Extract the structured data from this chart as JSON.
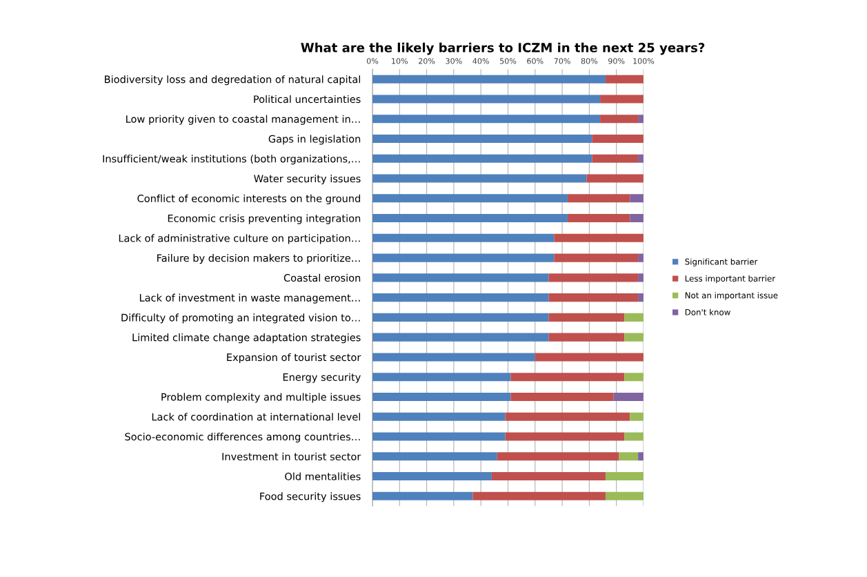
{
  "chart_data": {
    "type": "bar",
    "orientation": "horizontal",
    "stacked": true,
    "title": "What are the likely barriers to ICZM in the next 25 years?",
    "categories": [
      "Biodiversity loss and degredation of natural capital",
      "Political uncertainties",
      "Low priority given to coastal management in…",
      "Gaps in legislation",
      "Insufficient/weak institutions (both organizations,…",
      "Water security issues",
      "Conflict of economic interests on the ground",
      "Economic crisis preventing integration",
      "Lack of administrative culture on participation…",
      "Failure by decision makers to prioritize…",
      "Coastal erosion",
      "Lack of investment in waste management…",
      "Difficulty of promoting an integrated vision to…",
      "Limited climate change adaptation strategies",
      "Expansion of tourist sector",
      "Energy security",
      "Problem complexity and multiple issues",
      "Lack of coordination at international level",
      "Socio-economic differences among countries…",
      "Investment in tourist sector",
      "Old mentalities",
      "Food security issues"
    ],
    "series": [
      {
        "name": "Significant barrier",
        "color": "#4f81bd",
        "values": [
          86,
          84,
          84,
          81,
          81,
          79,
          72,
          72,
          67,
          67,
          65,
          65,
          65,
          65,
          60,
          51,
          51,
          49,
          49,
          46,
          44,
          37
        ]
      },
      {
        "name": "Less important barrier",
        "color": "#c0504d",
        "values": [
          14,
          16,
          14,
          19,
          17,
          21,
          23,
          23,
          33,
          31,
          33,
          33,
          28,
          28,
          40,
          42,
          38,
          46,
          44,
          45,
          42,
          49
        ]
      },
      {
        "name": "Not an important issue",
        "color": "#9bbb59",
        "values": [
          0,
          0,
          0,
          0,
          0,
          0,
          0,
          0,
          0,
          0,
          0,
          0,
          7,
          7,
          0,
          7,
          0,
          5,
          7,
          7,
          14,
          14
        ]
      },
      {
        "name": "Don't know",
        "color": "#8064a2",
        "values": [
          0,
          0,
          2,
          0,
          2,
          0,
          5,
          5,
          0,
          2,
          2,
          2,
          0,
          0,
          0,
          0,
          11,
          0,
          0,
          2,
          0,
          0
        ]
      }
    ],
    "xlim": [
      0,
      100
    ],
    "xticks": [
      {
        "value": 0,
        "label": "0%"
      },
      {
        "value": 10,
        "label": "10%"
      },
      {
        "value": 20,
        "label": "20%"
      },
      {
        "value": 30,
        "label": "30%"
      },
      {
        "value": 40,
        "label": "40%"
      },
      {
        "value": 50,
        "label": "50%"
      },
      {
        "value": 60,
        "label": "60%"
      },
      {
        "value": 70,
        "label": "70%"
      },
      {
        "value": 80,
        "label": "80%"
      },
      {
        "value": 90,
        "label": "90%"
      },
      {
        "value": 100,
        "label": "100%"
      }
    ],
    "grid": "x",
    "legend": "right"
  }
}
